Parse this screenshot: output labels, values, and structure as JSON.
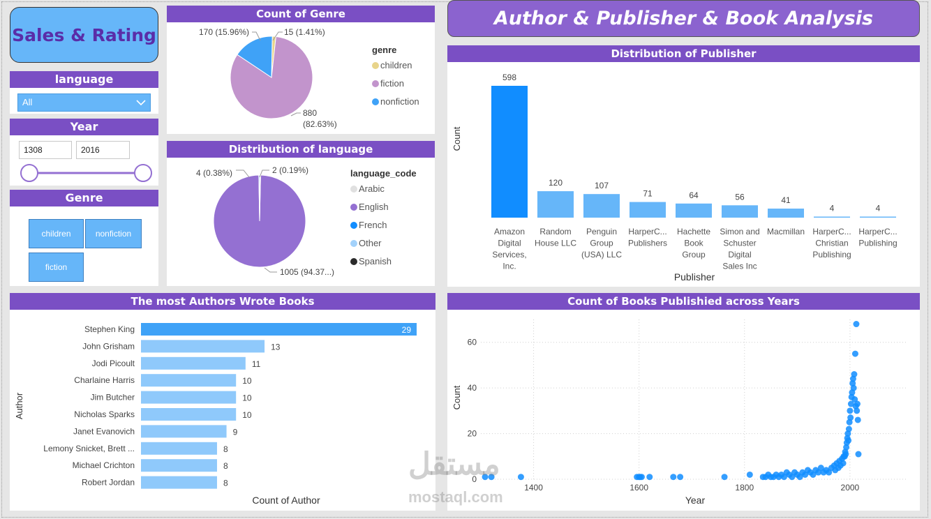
{
  "sidebar": {
    "title": "Sales & Rating",
    "language": {
      "header": "language",
      "selected": "All"
    },
    "year": {
      "header": "Year",
      "from": "1308",
      "to": "2016"
    },
    "genre": {
      "header": "Genre",
      "buttons": [
        "children",
        "nonfiction",
        "fiction"
      ]
    }
  },
  "main_title": "Author & Publisher & Book Analysis",
  "genre_panel": {
    "title": "Count of Genre"
  },
  "language_panel": {
    "title": "Distribution of language"
  },
  "publisher_panel": {
    "title": "Distribution of Publisher"
  },
  "authors_panel": {
    "title": "The most Authors Wrote Books"
  },
  "years_panel": {
    "title": "Count of Books Publishied across Years"
  },
  "watermark": {
    "arabic": "مستقل",
    "latin": "mostaql.com"
  },
  "colors": {
    "purple": "#7a4fc4",
    "blue": "#118dff",
    "lightblue": "#66b6f9",
    "paleblue": "#8fc9fb"
  },
  "chart_data": [
    {
      "id": "genre",
      "type": "pie",
      "legend_title": "genre",
      "legend_placement": "right",
      "slices": [
        {
          "name": "children",
          "value": 15,
          "label": "15 (1.41%)",
          "color": "#e8d48a"
        },
        {
          "name": "fiction",
          "value": 880,
          "label": "880 (82.63%)",
          "color": "#c294cc"
        },
        {
          "name": "nonfiction",
          "value": 170,
          "label": "170 (15.96%)",
          "color": "#3fa2f7"
        }
      ]
    },
    {
      "id": "language",
      "type": "pie",
      "legend_title": "language_code",
      "legend_placement": "right",
      "slices": [
        {
          "name": "Arabic",
          "value": 0,
          "label": "",
          "color": "#e0e0e0"
        },
        {
          "name": "English",
          "value": 1005,
          "label": "1005 (94.37...)",
          "color": "#9470d2"
        },
        {
          "name": "French",
          "value": 0,
          "label": "",
          "color": "#118dff"
        },
        {
          "name": "Other",
          "value": 4,
          "label": "4 (0.38%)",
          "color": "#a3d2fb"
        },
        {
          "name": "Spanish",
          "value": 2,
          "label": "2 (0.19%)",
          "color": "#2b2b2b"
        }
      ]
    },
    {
      "id": "publisher",
      "type": "bar",
      "xlabel": "Publisher",
      "ylabel": "Count",
      "categories": [
        [
          "Amazon",
          "Digital",
          "Services,",
          "Inc."
        ],
        [
          "Random",
          "House LLC"
        ],
        [
          "Penguin",
          "Group",
          "(USA) LLC"
        ],
        [
          "HarperC...",
          "Publishers"
        ],
        [
          "Hachette",
          "Book",
          "Group"
        ],
        [
          "Simon and",
          "Schuster",
          "Digital",
          "Sales Inc"
        ],
        [
          "Macmillan"
        ],
        [
          "HarperC...",
          "Christian",
          "Publishing"
        ],
        [
          "HarperC...",
          "Publishing"
        ]
      ],
      "values": [
        598,
        120,
        107,
        71,
        64,
        56,
        41,
        4,
        4
      ],
      "ylim": [
        0,
        598
      ]
    },
    {
      "id": "authors",
      "type": "bar",
      "orientation": "horizontal",
      "xlabel": "Count of Author",
      "ylabel": "Author",
      "categories": [
        "Stephen King",
        "John Grisham",
        "Jodi Picoult",
        "Charlaine Harris",
        "Jim Butcher",
        "Nicholas Sparks",
        "Janet Evanovich",
        "Lemony Snicket, Brett ...",
        "Michael Crichton",
        "Robert Jordan"
      ],
      "values": [
        29,
        13,
        11,
        10,
        10,
        10,
        9,
        8,
        8,
        8
      ],
      "xlim": [
        0,
        29
      ]
    },
    {
      "id": "years",
      "type": "scatter",
      "xlabel": "Year",
      "ylabel": "Count",
      "xticks": [
        1400,
        1600,
        1800,
        2000
      ],
      "yticks": [
        0,
        20,
        40,
        60
      ],
      "xlim": [
        1300,
        2110
      ],
      "ylim": [
        0,
        70
      ],
      "grid": true,
      "x": [
        1308,
        1320,
        1376,
        1596,
        1600,
        1602,
        1605,
        1620,
        1665,
        1678,
        1762,
        1810,
        1835,
        1840,
        1845,
        1850,
        1855,
        1860,
        1865,
        1870,
        1875,
        1880,
        1885,
        1890,
        1895,
        1900,
        1905,
        1910,
        1915,
        1920,
        1925,
        1930,
        1935,
        1940,
        1945,
        1950,
        1955,
        1960,
        1965,
        1970,
        1972,
        1975,
        1978,
        1980,
        1982,
        1985,
        1987,
        1988,
        1990,
        1991,
        1992,
        1993,
        1994,
        1995,
        1996,
        1997,
        1998,
        1999,
        2000,
        2001,
        2002,
        2003,
        2004,
        2005,
        2006,
        2007,
        2008,
        2009,
        2010,
        2011,
        2012,
        2013,
        2014,
        2015,
        2016
      ],
      "y": [
        1,
        1,
        1,
        1,
        1,
        1,
        1,
        1,
        1,
        1,
        1,
        2,
        1,
        1,
        2,
        1,
        1,
        2,
        1,
        2,
        1,
        3,
        2,
        1,
        3,
        2,
        1,
        3,
        2,
        4,
        3,
        2,
        4,
        3,
        5,
        3,
        4,
        3,
        5,
        6,
        4,
        7,
        5,
        8,
        6,
        9,
        7,
        10,
        10,
        12,
        11,
        14,
        16,
        18,
        20,
        17,
        22,
        25,
        30,
        27,
        33,
        36,
        38,
        42,
        44,
        40,
        46,
        35,
        55,
        32,
        68,
        30,
        33,
        26,
        11
      ]
    }
  ]
}
